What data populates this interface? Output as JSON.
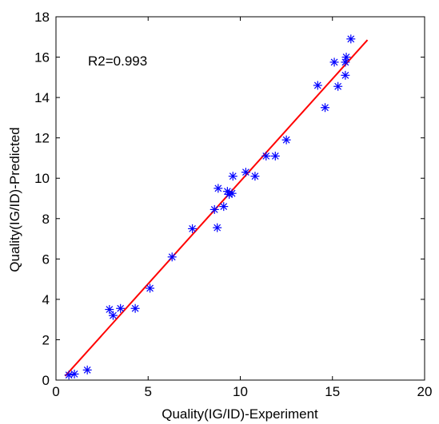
{
  "chart_data": {
    "type": "scatter",
    "title": "",
    "xlabel": "Quality(IG/ID)-Experiment",
    "ylabel": "Quality(IG/ID)-Predicted",
    "xlim": [
      0,
      20
    ],
    "ylim": [
      0,
      18
    ],
    "x_ticks": [
      0,
      5,
      10,
      15,
      20
    ],
    "y_ticks": [
      0,
      2,
      4,
      6,
      8,
      10,
      12,
      14,
      16,
      18
    ],
    "grid": false,
    "legend": "none",
    "annotation": "R2=0.993",
    "series": [
      {
        "type": "scatter",
        "marker": "asterisk",
        "color": "#0000ff",
        "points": [
          [
            0.7,
            0.25
          ],
          [
            1.0,
            0.3
          ],
          [
            1.7,
            0.5
          ],
          [
            2.9,
            3.5
          ],
          [
            3.1,
            3.2
          ],
          [
            3.5,
            3.55
          ],
          [
            4.3,
            3.55
          ],
          [
            5.1,
            4.55
          ],
          [
            6.3,
            6.1
          ],
          [
            7.4,
            7.5
          ],
          [
            8.6,
            8.45
          ],
          [
            8.75,
            7.55
          ],
          [
            8.8,
            9.5
          ],
          [
            9.1,
            8.6
          ],
          [
            9.3,
            9.35
          ],
          [
            9.4,
            9.2
          ],
          [
            9.55,
            9.25
          ],
          [
            9.6,
            10.1
          ],
          [
            10.3,
            10.3
          ],
          [
            10.8,
            10.1
          ],
          [
            11.4,
            11.1
          ],
          [
            11.9,
            11.1
          ],
          [
            12.5,
            11.9
          ],
          [
            14.2,
            14.6
          ],
          [
            14.6,
            13.5
          ],
          [
            15.1,
            15.75
          ],
          [
            15.3,
            14.55
          ],
          [
            15.7,
            15.1
          ],
          [
            15.7,
            15.75
          ],
          [
            15.75,
            16.0
          ],
          [
            16.0,
            16.9
          ]
        ]
      },
      {
        "type": "line",
        "color": "#ff0000",
        "points": [
          [
            0.5,
            0.2
          ],
          [
            16.9,
            16.85
          ]
        ]
      }
    ]
  }
}
